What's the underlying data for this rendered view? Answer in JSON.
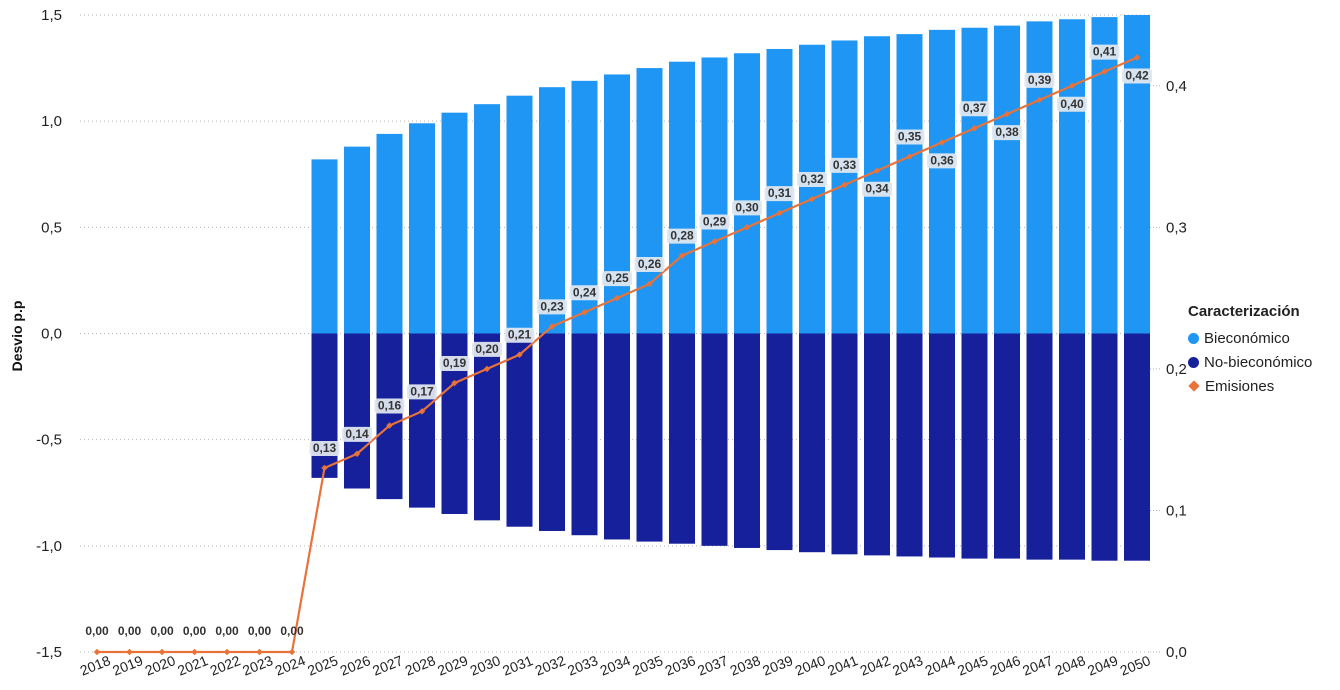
{
  "chart_data": {
    "type": "bar",
    "ylabel": "Desvio p.p",
    "left_axis": {
      "ylim": [
        -1.5,
        1.5
      ],
      "ticks": [
        "1,5",
        "1,0",
        "0,5",
        "0,0",
        "-0,5",
        "-1,0",
        "-1,5"
      ],
      "tick_values": [
        1.5,
        1.0,
        0.5,
        0.0,
        -0.5,
        -1.0,
        -1.5
      ]
    },
    "right_axis": {
      "ylim": [
        0.0,
        0.45
      ],
      "ticks": [
        "0,4",
        "0,3",
        "0,2",
        "0,1",
        "0,0"
      ],
      "tick_values": [
        0.4,
        0.3,
        0.2,
        0.1,
        0.0
      ]
    },
    "grid": true,
    "categories": [
      "2018",
      "2019",
      "2020",
      "2021",
      "2022",
      "2023",
      "2024",
      "2025",
      "2026",
      "2027",
      "2028",
      "2029",
      "2030",
      "2031",
      "2032",
      "2033",
      "2034",
      "2035",
      "2036",
      "2037",
      "2038",
      "2039",
      "2040",
      "2041",
      "2042",
      "2043",
      "2044",
      "2045",
      "2046",
      "2047",
      "2048",
      "2049",
      "2050"
    ],
    "legend": {
      "title": "Caracterización",
      "position": "right",
      "items": [
        {
          "name": "Bieconómico",
          "color": "#1f96f3",
          "shape": "circle"
        },
        {
          "name": "No-bieconómico",
          "color": "#15209a",
          "shape": "circle"
        },
        {
          "name": "Emisiones",
          "color": "#e8733a",
          "shape": "diamond"
        }
      ]
    },
    "series": [
      {
        "name": "Bieconómico",
        "type": "bar",
        "axis": "left",
        "color": "#1f96f3",
        "values": [
          null,
          null,
          null,
          null,
          null,
          null,
          null,
          0.82,
          0.88,
          0.94,
          0.99,
          1.04,
          1.08,
          1.12,
          1.16,
          1.19,
          1.22,
          1.25,
          1.28,
          1.3,
          1.32,
          1.34,
          1.36,
          1.38,
          1.4,
          1.41,
          1.43,
          1.44,
          1.45,
          1.47,
          1.48,
          1.49,
          1.5
        ]
      },
      {
        "name": "No-bieconómico",
        "type": "bar",
        "axis": "left",
        "color": "#15209a",
        "values": [
          null,
          null,
          null,
          null,
          null,
          null,
          null,
          -0.68,
          -0.73,
          -0.78,
          -0.82,
          -0.85,
          -0.88,
          -0.91,
          -0.93,
          -0.95,
          -0.97,
          -0.98,
          -0.99,
          -1.0,
          -1.01,
          -1.02,
          -1.03,
          -1.04,
          -1.045,
          -1.05,
          -1.055,
          -1.06,
          -1.06,
          -1.065,
          -1.065,
          -1.07,
          -1.07
        ]
      },
      {
        "name": "Emisiones",
        "type": "line",
        "axis": "right",
        "color": "#e8733a",
        "values": [
          0.0,
          0.0,
          0.0,
          0.0,
          0.0,
          0.0,
          0.0,
          0.13,
          0.14,
          0.16,
          0.17,
          0.19,
          0.2,
          0.21,
          0.23,
          0.24,
          0.25,
          0.26,
          0.28,
          0.29,
          0.3,
          0.31,
          0.32,
          0.33,
          0.34,
          0.35,
          0.36,
          0.37,
          0.38,
          0.39,
          0.4,
          0.41,
          0.42
        ],
        "labels": [
          "0,00",
          "0,00",
          "0,00",
          "0,00",
          "0,00",
          "0,00",
          "0,00",
          "0,13",
          "0,14",
          "0,16",
          "0,17",
          "0,19",
          "0,20",
          "0,21",
          "0,23",
          "0,24",
          "0,25",
          "0,26",
          "0,28",
          "0,29",
          "0,30",
          "0,31",
          "0,32",
          "0,33",
          "0,34",
          "0,35",
          "0,36",
          "0,37",
          "0,38",
          "0,39",
          "0,40",
          "0,41",
          "0,42"
        ]
      }
    ]
  }
}
